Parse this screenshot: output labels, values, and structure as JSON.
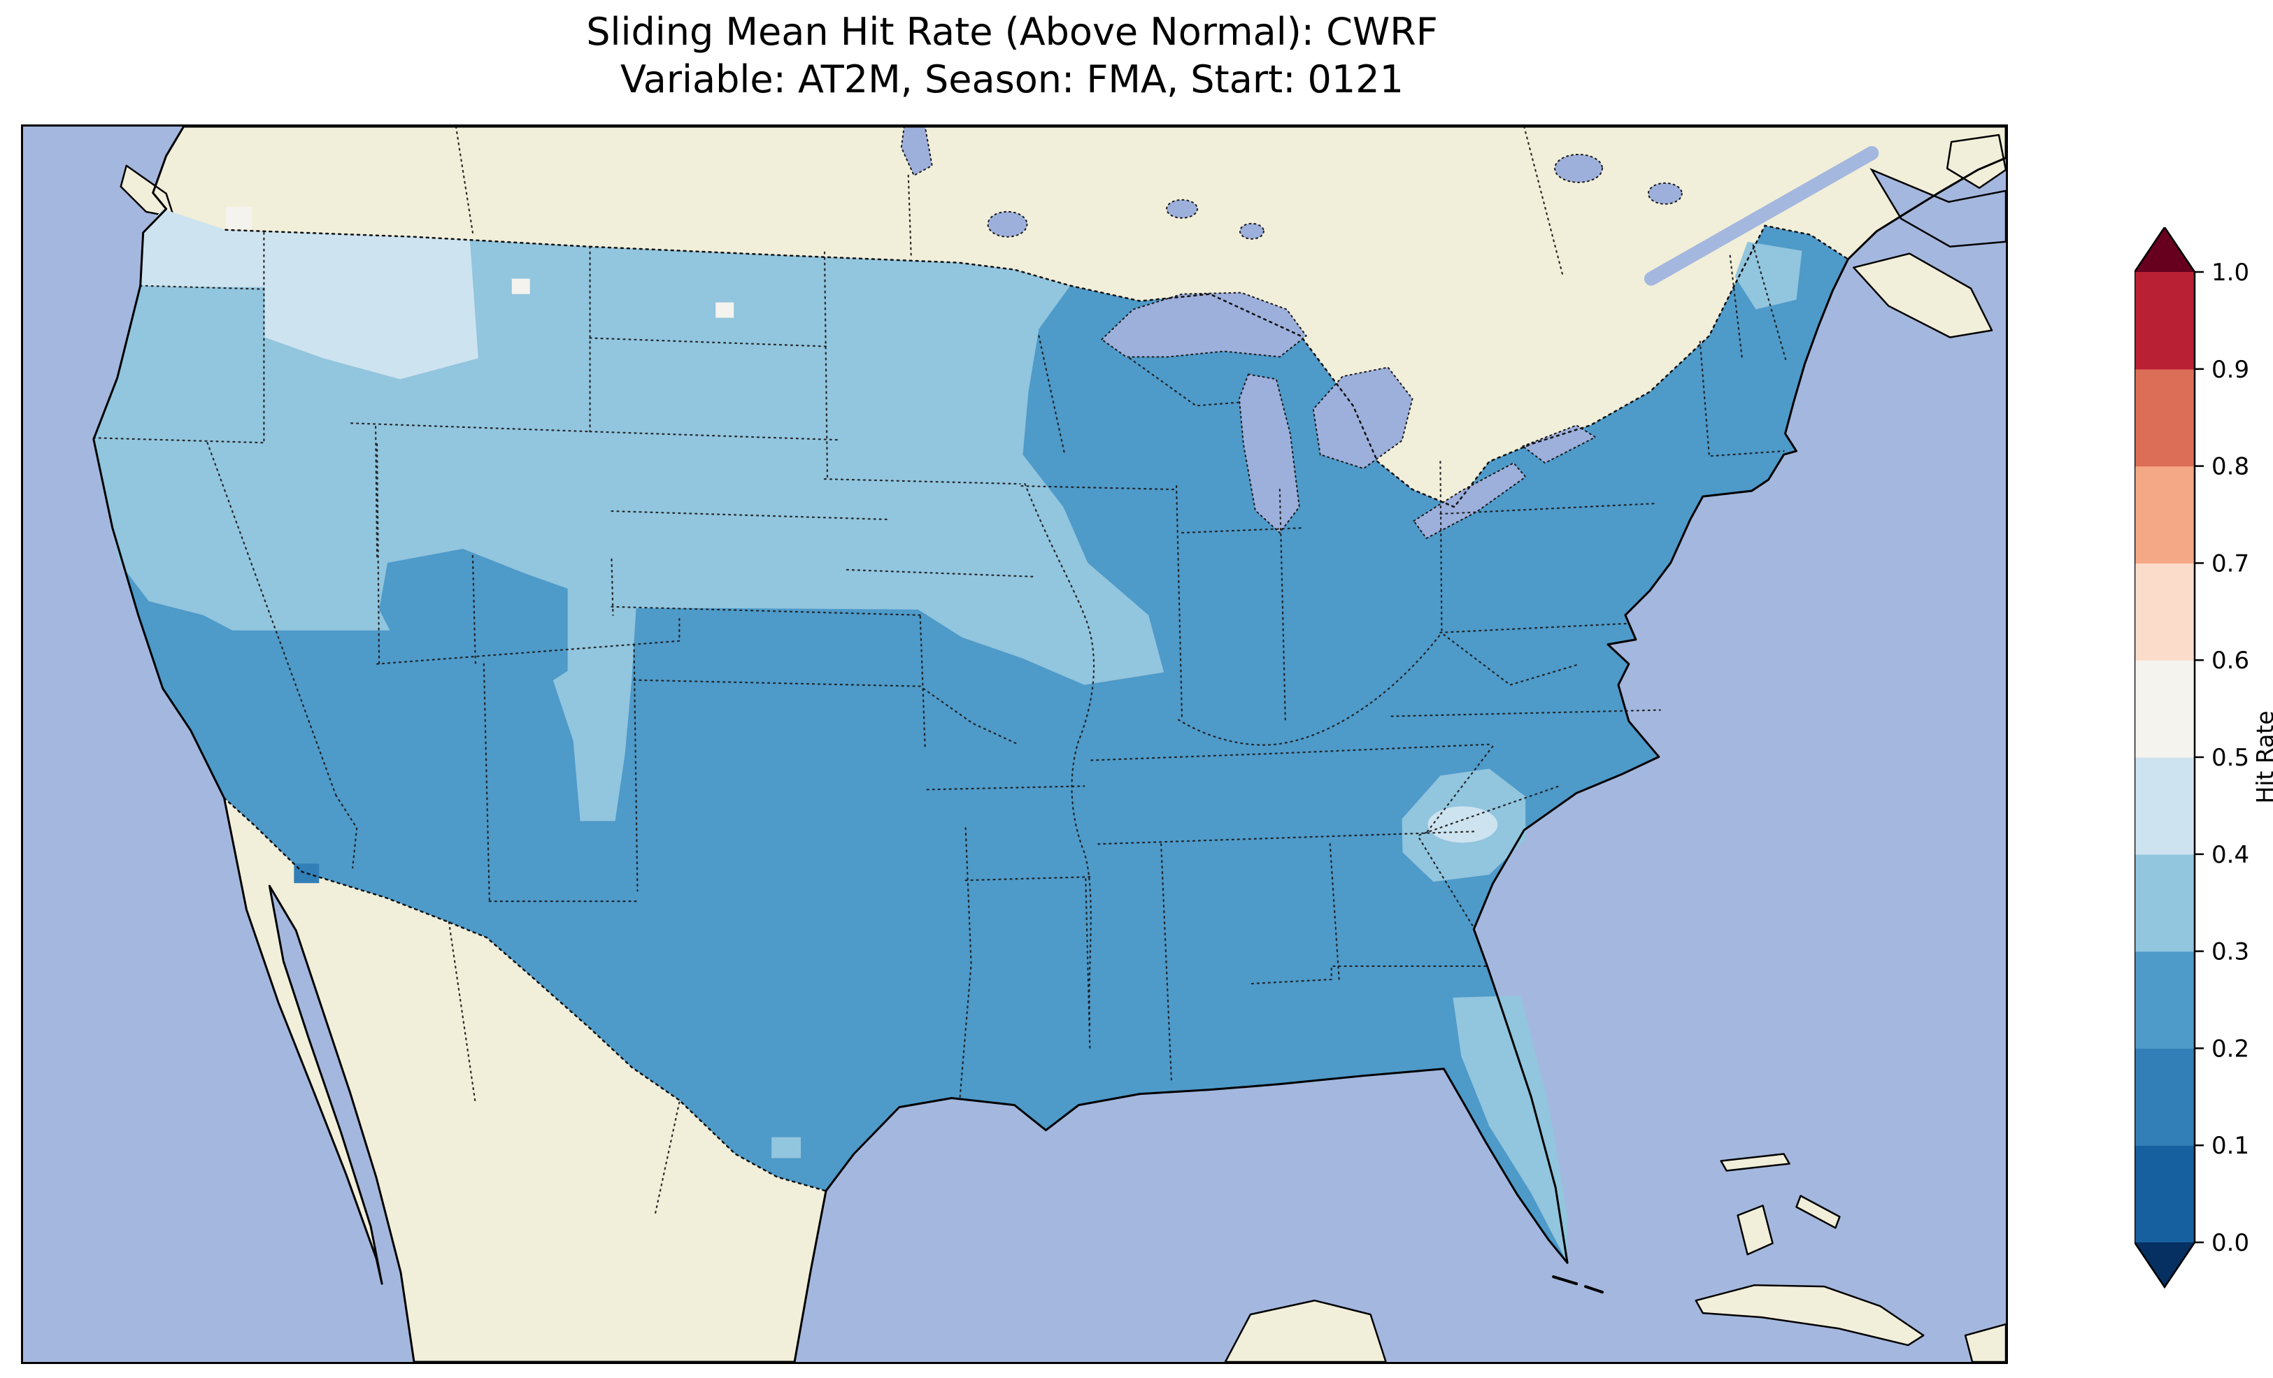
{
  "title": {
    "line1": "Sliding Mean Hit Rate (Above Normal): CWRF",
    "line2": "Variable: AT2M, Season: FMA, Start: 0121"
  },
  "colorbar": {
    "label": "Hit Rate",
    "tick_labels": [
      "0.0",
      "0.1",
      "0.2",
      "0.3",
      "0.4",
      "0.5",
      "0.6",
      "0.7",
      "0.8",
      "0.9",
      "1.0"
    ],
    "bin_colors": [
      "#17609f",
      "#327fb8",
      "#4e9ac9",
      "#92c5de",
      "#cde3ef",
      "#f5f3ee",
      "#fbdccb",
      "#f5a885",
      "#dc6e58",
      "#b92034"
    ],
    "extend_low_color": "#053061",
    "extend_high_color": "#67001f",
    "outline_color": "#000000"
  },
  "map": {
    "ocean_color": "#a4b7de",
    "land_color": "#f1eeda",
    "lake_color": "#9dafdb",
    "coast_color": "#000000"
  },
  "chart_data": {
    "type": "heatmap",
    "title": "Sliding Mean Hit Rate (Above Normal): CWRF — Variable: AT2M, Season: FMA, Start: 0121",
    "metric": "Sliding Mean Hit Rate (Above Normal)",
    "model": "CWRF",
    "variable": "AT2M",
    "season": "FMA",
    "start": "0121",
    "colorbar_label": "Hit Rate",
    "value_range": [
      0.0,
      1.0
    ],
    "value_bins": [
      0.0,
      0.1,
      0.2,
      0.3,
      0.4,
      0.5,
      0.6,
      0.7,
      0.8,
      0.9,
      1.0
    ],
    "colorbar_extends": "both",
    "legend_position": "right",
    "region_values": {
      "us-base": 0.25,
      "west-and-plains": 0.35,
      "pacific-northwest": 0.45,
      "washington-high-patch": 0.55,
      "montana-high-patch": 0.55,
      "montana-high-patch-2": 0.55,
      "utah-colorado-pocket": 0.25,
      "arizona-low-spot": 0.15,
      "georgia-patch": 0.35,
      "georgia-patch-core": 0.45,
      "florida-peninsula": 0.35,
      "northern-maine-patch": 0.35,
      "south-texas-cells": 0.35
    }
  }
}
